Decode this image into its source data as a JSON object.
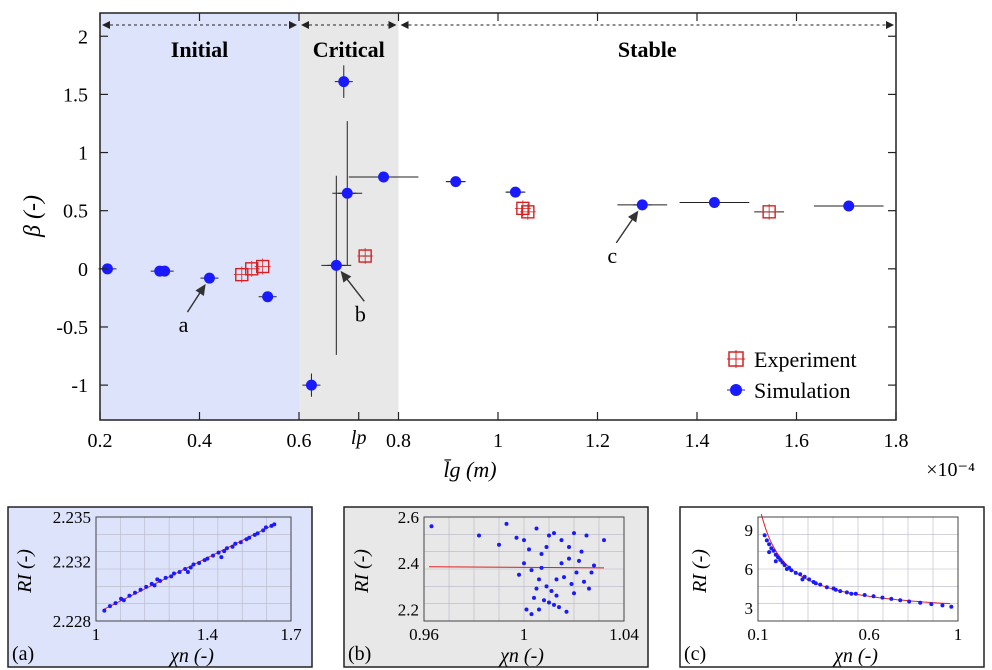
{
  "chart_data": [
    {
      "type": "scatter",
      "title": "",
      "xlabel": "l̄g (m)",
      "ylabel": "β (-)",
      "x_scale_label": "×10⁻⁴",
      "xlim": [
        0.2,
        1.8
      ],
      "ylim": [
        -1.3,
        2.2
      ],
      "xticks": [
        "0.2",
        "0.4",
        "0.6",
        "0.8",
        "1",
        "1.2",
        "1.4",
        "1.6",
        "1.8"
      ],
      "xtick_values": [
        0.2,
        0.4,
        0.6,
        0.8,
        1.0,
        1.2,
        1.4,
        1.6,
        1.8
      ],
      "extra_xtick": {
        "label": "lp",
        "value": 0.72
      },
      "yticks": [
        "-1",
        "-0.5",
        "0",
        "0.5",
        "1",
        "1.5",
        "2"
      ],
      "ytick_values": [
        -1,
        -0.5,
        0,
        0.5,
        1,
        1.5,
        2
      ],
      "regions": [
        {
          "label": "Initial",
          "from": 0.2,
          "to": 0.6,
          "color": "#dde3fa"
        },
        {
          "label": "Critical",
          "from": 0.6,
          "to": 0.8,
          "color": "#e8e8e8"
        },
        {
          "label": "Stable",
          "from": 0.8,
          "to": 1.8,
          "color": "#ffffff"
        }
      ],
      "legend": {
        "position": "bottom-right",
        "entries": [
          "Experiment",
          "Simulation"
        ]
      },
      "series": [
        {
          "name": "Simulation",
          "color": "#1a1aff",
          "points": [
            {
              "x": 0.215,
              "y": 0.0,
              "xerr": 0.0,
              "yerr": 0.0
            },
            {
              "x": 0.32,
              "y": -0.02,
              "xerr": 0.0,
              "yerr": 0.0
            },
            {
              "x": 0.33,
              "y": -0.02,
              "xerr": 0.0,
              "yerr": 0.0
            },
            {
              "x": 0.42,
              "y": -0.08,
              "xerr": 0.01,
              "yerr": 0.0
            },
            {
              "x": 0.537,
              "y": -0.24,
              "xerr": 0.0,
              "yerr": 0.0
            },
            {
              "x": 0.625,
              "y": -1.0,
              "xerr": 0.0,
              "yerr": 0.1
            },
            {
              "x": 0.675,
              "y": 0.03,
              "xerr": 0.03,
              "yerr": 0.77
            },
            {
              "x": 0.69,
              "y": 1.61,
              "xerr": 0.01,
              "yerr": 0.14
            },
            {
              "x": 0.697,
              "y": 0.65,
              "xerr": 0.03,
              "yerr": 0.62
            },
            {
              "x": 0.77,
              "y": 0.79,
              "xerr": 0.07,
              "yerr": 0.0
            },
            {
              "x": 0.915,
              "y": 0.75,
              "xerr": 0.02,
              "yerr": 0.0
            },
            {
              "x": 1.035,
              "y": 0.66,
              "xerr": 0.02,
              "yerr": 0.0
            },
            {
              "x": 1.29,
              "y": 0.55,
              "xerr": 0.05,
              "yerr": 0.0
            },
            {
              "x": 1.435,
              "y": 0.57,
              "xerr": 0.07,
              "yerr": 0.0
            },
            {
              "x": 1.705,
              "y": 0.54,
              "xerr": 0.07,
              "yerr": 0.0
            }
          ]
        },
        {
          "name": "Experiment",
          "color": "#d62020",
          "points": [
            {
              "x": 0.485,
              "y": -0.05,
              "xerr": 0.0,
              "yerr": 0.0
            },
            {
              "x": 0.505,
              "y": 0.0,
              "xerr": 0.0,
              "yerr": 0.0
            },
            {
              "x": 0.527,
              "y": 0.02,
              "xerr": 0.0,
              "yerr": 0.0
            },
            {
              "x": 0.733,
              "y": 0.11,
              "xerr": 0.01,
              "yerr": 0.0
            },
            {
              "x": 1.05,
              "y": 0.52,
              "xerr": 0.0,
              "yerr": 0.0
            },
            {
              "x": 1.06,
              "y": 0.49,
              "xerr": 0.0,
              "yerr": 0.0
            },
            {
              "x": 1.545,
              "y": 0.49,
              "xerr": 0.03,
              "yerr": 0.0
            }
          ]
        }
      ],
      "annotations": [
        {
          "label": "a",
          "x": 0.42,
          "y": -0.08
        },
        {
          "label": "b",
          "x": 0.675,
          "y": 0.03
        },
        {
          "label": "c",
          "x": 1.29,
          "y": 0.55
        }
      ]
    },
    {
      "type": "scatter",
      "panel_label": "(a)",
      "background": "#dde3fa",
      "xlabel": "χn (-)",
      "ylabel": "RI (-)",
      "xlim": [
        1.0,
        1.7
      ],
      "ylim": [
        2.228,
        2.235
      ],
      "xticks": [
        "1",
        "1.4",
        "1.7"
      ],
      "xtick_values": [
        1.0,
        1.4,
        1.7
      ],
      "yticks": [
        "2.228",
        "2.232",
        "2.235"
      ],
      "ytick_values": [
        2.228,
        2.232,
        2.235
      ],
      "fit_line": {
        "x": [
          1.03,
          1.64
        ],
        "y": [
          2.2288,
          2.2345
        ]
      },
      "points": [
        [
          1.03,
          2.2287
        ],
        [
          1.05,
          2.229
        ],
        [
          1.07,
          2.2292
        ],
        [
          1.09,
          2.2295
        ],
        [
          1.1,
          2.2294
        ],
        [
          1.12,
          2.2297
        ],
        [
          1.14,
          2.2299
        ],
        [
          1.16,
          2.2301
        ],
        [
          1.18,
          2.2303
        ],
        [
          1.2,
          2.2305
        ],
        [
          1.21,
          2.2304
        ],
        [
          1.23,
          2.2307
        ],
        [
          1.25,
          2.2309
        ],
        [
          1.27,
          2.231
        ],
        [
          1.28,
          2.2312
        ],
        [
          1.3,
          2.2313
        ],
        [
          1.32,
          2.2315
        ],
        [
          1.34,
          2.2316
        ],
        [
          1.35,
          2.2318
        ],
        [
          1.37,
          2.2319
        ],
        [
          1.39,
          2.2321
        ],
        [
          1.4,
          2.2322
        ],
        [
          1.42,
          2.2324
        ],
        [
          1.44,
          2.2326
        ],
        [
          1.46,
          2.2327
        ],
        [
          1.47,
          2.2329
        ],
        [
          1.49,
          2.233
        ],
        [
          1.5,
          2.2332
        ],
        [
          1.52,
          2.2333
        ],
        [
          1.54,
          2.2335
        ],
        [
          1.55,
          2.2336
        ],
        [
          1.57,
          2.2338
        ],
        [
          1.58,
          2.2339
        ],
        [
          1.6,
          2.2341
        ],
        [
          1.61,
          2.2343
        ],
        [
          1.63,
          2.2344
        ],
        [
          1.64,
          2.2345
        ],
        [
          1.45,
          2.2323
        ],
        [
          1.33,
          2.2313
        ],
        [
          1.22,
          2.2308
        ]
      ]
    },
    {
      "type": "scatter",
      "panel_label": "(b)",
      "background": "#e8e8e8",
      "xlabel": "χn (-)",
      "ylabel": "RI (-)",
      "xlim": [
        0.96,
        1.04
      ],
      "ylim": [
        2.15,
        2.6
      ],
      "xticks": [
        "0.96",
        "1",
        "1.04"
      ],
      "xtick_values": [
        0.96,
        1.0,
        1.04
      ],
      "yticks": [
        "2.2",
        "2.4",
        "2.6"
      ],
      "ytick_values": [
        2.2,
        2.4,
        2.6
      ],
      "fit_line": {
        "x": [
          0.962,
          1.032
        ],
        "y": [
          2.385,
          2.38
        ]
      },
      "points": [
        [
          0.963,
          2.56
        ],
        [
          0.982,
          2.52
        ],
        [
          0.99,
          2.48
        ],
        [
          0.993,
          2.57
        ],
        [
          0.997,
          2.51
        ],
        [
          1.0,
          2.5
        ],
        [
          1.002,
          2.46
        ],
        [
          1.005,
          2.55
        ],
        [
          1.007,
          2.44
        ],
        [
          1.01,
          2.52
        ],
        [
          1.012,
          2.53
        ],
        [
          1.015,
          2.5
        ],
        [
          1.018,
          2.47
        ],
        [
          1.02,
          2.53
        ],
        [
          1.022,
          2.41
        ],
        [
          1.025,
          2.52
        ],
        [
          1.028,
          2.39
        ],
        [
          1.032,
          2.5
        ],
        [
          1.0,
          2.4
        ],
        [
          1.003,
          2.37
        ],
        [
          1.006,
          2.33
        ],
        [
          1.009,
          2.3
        ],
        [
          1.011,
          2.28
        ],
        [
          1.013,
          2.26
        ],
        [
          1.016,
          2.34
        ],
        [
          1.019,
          2.31
        ],
        [
          1.021,
          2.36
        ],
        [
          1.024,
          2.32
        ],
        [
          1.004,
          2.25
        ],
        [
          1.008,
          2.24
        ],
        [
          1.012,
          2.22
        ],
        [
          1.001,
          2.2
        ],
        [
          1.014,
          2.21
        ],
        [
          1.017,
          2.19
        ],
        [
          1.003,
          2.18
        ],
        [
          1.006,
          2.2
        ],
        [
          1.01,
          2.23
        ],
        [
          1.02,
          2.27
        ],
        [
          1.026,
          2.29
        ],
        [
          0.998,
          2.35
        ],
        [
          1.018,
          2.42
        ],
        [
          1.007,
          2.38
        ],
        [
          1.015,
          2.4
        ],
        [
          1.023,
          2.45
        ],
        [
          1.009,
          2.47
        ],
        [
          1.027,
          2.36
        ],
        [
          1.013,
          2.33
        ],
        [
          1.005,
          2.29
        ]
      ]
    },
    {
      "type": "scatter",
      "panel_label": "(c)",
      "background": "#ffffff",
      "xlabel": "χn (-)",
      "ylabel": "RI (-)",
      "xlim": [
        0.1,
        1.0
      ],
      "ylim": [
        2.0,
        10.0
      ],
      "xticks": [
        "0.1",
        "0.6",
        "1"
      ],
      "xtick_values": [
        0.1,
        0.6,
        1.0
      ],
      "yticks": [
        "3",
        "6",
        "9"
      ],
      "ytick_values": [
        3,
        6,
        9
      ],
      "fit_curve": {
        "a": 0.9,
        "b": 2.4
      },
      "points": [
        [
          0.13,
          8.6
        ],
        [
          0.14,
          8.2
        ],
        [
          0.15,
          7.9
        ],
        [
          0.16,
          7.6
        ],
        [
          0.17,
          7.4
        ],
        [
          0.18,
          7.1
        ],
        [
          0.19,
          6.9
        ],
        [
          0.2,
          6.7
        ],
        [
          0.21,
          6.5
        ],
        [
          0.22,
          6.3
        ],
        [
          0.24,
          6.1
        ],
        [
          0.25,
          5.9
        ],
        [
          0.27,
          5.7
        ],
        [
          0.29,
          5.6
        ],
        [
          0.31,
          5.4
        ],
        [
          0.33,
          5.2
        ],
        [
          0.35,
          5.0
        ],
        [
          0.38,
          4.8
        ],
        [
          0.41,
          4.6
        ],
        [
          0.44,
          4.5
        ],
        [
          0.47,
          4.3
        ],
        [
          0.5,
          4.2
        ],
        [
          0.54,
          4.1
        ],
        [
          0.58,
          4.0
        ],
        [
          0.62,
          3.9
        ],
        [
          0.66,
          3.8
        ],
        [
          0.7,
          3.7
        ],
        [
          0.74,
          3.6
        ],
        [
          0.78,
          3.5
        ],
        [
          0.83,
          3.4
        ],
        [
          0.88,
          3.3
        ],
        [
          0.93,
          3.2
        ],
        [
          0.97,
          3.1
        ],
        [
          0.15,
          7.3
        ],
        [
          0.18,
          6.6
        ],
        [
          0.23,
          6.0
        ],
        [
          0.3,
          5.2
        ],
        [
          0.36,
          4.9
        ],
        [
          0.45,
          4.4
        ],
        [
          0.52,
          4.1
        ]
      ]
    }
  ]
}
